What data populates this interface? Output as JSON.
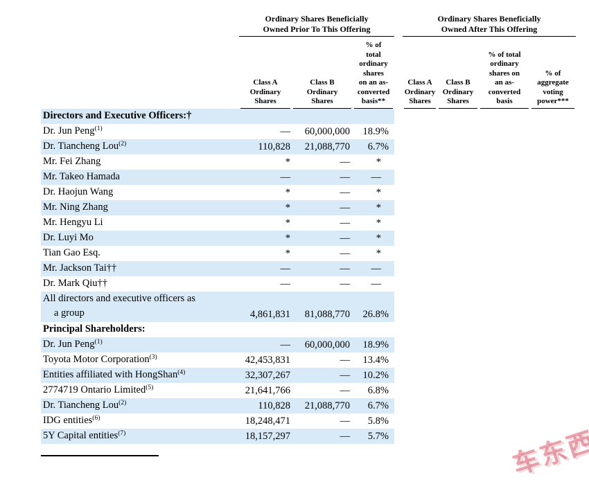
{
  "page": {
    "background": "#ffffff",
    "stripe_color": "#d8eaf8",
    "text_color": "#000000"
  },
  "watermark": {
    "text": "车东西",
    "color": "#d65a6c"
  },
  "table": {
    "groups": [
      {
        "lines": [
          "Ordinary Shares Beneficially",
          "Owned Prior To This Offering"
        ]
      },
      {
        "lines": [
          "Ordinary Shares Beneficially",
          "Owned After This Offering"
        ]
      }
    ],
    "columns": [
      {
        "lines": [
          "Class A",
          "Ordinary",
          "Shares"
        ]
      },
      {
        "lines": [
          "Class B",
          "Ordinary",
          "Shares"
        ]
      },
      {
        "lines": [
          "% of",
          "total",
          "ordinary",
          "shares",
          "on an as-",
          "converted",
          "basis**"
        ]
      },
      {
        "lines": [
          "Class A",
          "Ordinary",
          "Shares"
        ]
      },
      {
        "lines": [
          "Class B",
          "Ordinary",
          "Shares"
        ]
      },
      {
        "lines": [
          "% of total",
          "ordinary",
          "shares on",
          "an as-",
          "converted",
          "basis"
        ]
      },
      {
        "lines": [
          "% of",
          "aggregate",
          "voting",
          "power***"
        ]
      }
    ],
    "rows": [
      {
        "type": "section",
        "name": "Directors and Executive Officers:†",
        "shaded": true
      },
      {
        "type": "data",
        "name": "Dr. Jun Peng",
        "sup": "(1)",
        "prior": [
          "—",
          "60,000,000",
          "18.9%"
        ],
        "shaded": false
      },
      {
        "type": "data",
        "name": "Dr. Tiancheng Lou",
        "sup": "(2)",
        "prior": [
          "110,828",
          "21,088,770",
          "6.7%"
        ],
        "shaded": true
      },
      {
        "type": "data",
        "name": "Mr. Fei Zhang",
        "prior": [
          "*",
          "—",
          "*"
        ],
        "shaded": false
      },
      {
        "type": "data",
        "name": "Mr. Takeo Hamada",
        "prior": [
          "—",
          "—",
          "—"
        ],
        "shaded": true
      },
      {
        "type": "data",
        "name": "Dr. Haojun Wang",
        "prior": [
          "*",
          "—",
          "*"
        ],
        "shaded": false
      },
      {
        "type": "data",
        "name": "Mr. Ning Zhang",
        "prior": [
          "*",
          "—",
          "*"
        ],
        "shaded": true
      },
      {
        "type": "data",
        "name": "Mr. Hengyu Li",
        "prior": [
          "*",
          "—",
          "*"
        ],
        "shaded": false
      },
      {
        "type": "data",
        "name": "Dr. Luyi Mo",
        "prior": [
          "*",
          "—",
          "*"
        ],
        "shaded": true
      },
      {
        "type": "data",
        "name": "Tian Gao Esq.",
        "prior": [
          "*",
          "—",
          "*"
        ],
        "shaded": false
      },
      {
        "type": "data",
        "name": "Mr. Jackson Tai††",
        "prior": [
          "—",
          "—",
          "—"
        ],
        "shaded": true
      },
      {
        "type": "data",
        "name": "Dr. Mark Qiu††",
        "prior": [
          "—",
          "—",
          "—"
        ],
        "shaded": false
      },
      {
        "type": "data",
        "name_lines": [
          "All directors and executive officers as",
          "a group"
        ],
        "prior": [
          "4,861,831",
          "81,088,770",
          "26.8%"
        ],
        "shaded": true
      },
      {
        "type": "section",
        "name": "Principal Shareholders:",
        "shaded": false
      },
      {
        "type": "data",
        "name": "Dr. Jun Peng",
        "sup": "(1)",
        "prior": [
          "—",
          "60,000,000",
          "18.9%"
        ],
        "shaded": true
      },
      {
        "type": "data",
        "name": "Toyota Motor Corporation",
        "sup": "(3)",
        "prior": [
          "42,453,831",
          "—",
          "13.4%"
        ],
        "shaded": false
      },
      {
        "type": "data",
        "name": "Entities affiliated with HongShan",
        "sup": "(4)",
        "prior": [
          "32,307,267",
          "—",
          "10.2%"
        ],
        "shaded": true
      },
      {
        "type": "data",
        "name": "2774719 Ontario Limited",
        "sup": "(5)",
        "prior": [
          "21,641,766",
          "—",
          "6.8%"
        ],
        "shaded": false
      },
      {
        "type": "data",
        "name": "Dr. Tiancheng Lou",
        "sup": "(2)",
        "prior": [
          "110,828",
          "21,088,770",
          "6.7%"
        ],
        "shaded": true
      },
      {
        "type": "data",
        "name": "IDG entities",
        "sup": "(6)",
        "prior": [
          "18,248,471",
          "—",
          "5.8%"
        ],
        "shaded": false
      },
      {
        "type": "data",
        "name": "5Y Capital entities",
        "sup": "(7)",
        "prior": [
          "18,157,297",
          "—",
          "5.7%"
        ],
        "shaded": true
      }
    ]
  }
}
